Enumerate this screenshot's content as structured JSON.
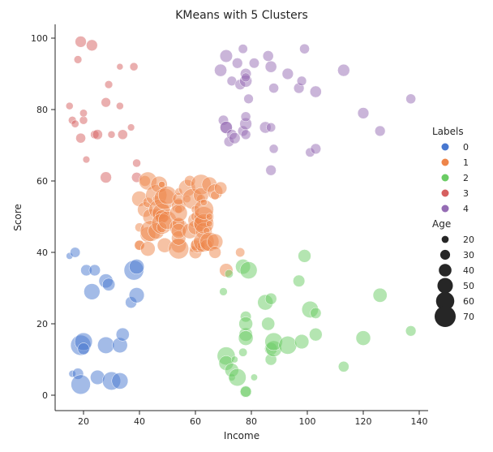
{
  "chart_data": {
    "type": "scatter",
    "title": "KMeans with 5 Clusters",
    "xlabel": "Income",
    "ylabel": "Score",
    "xlim": [
      10,
      145
    ],
    "ylim": [
      -5,
      103
    ],
    "xticks": [
      20,
      40,
      60,
      80,
      100,
      120,
      140
    ],
    "yticks": [
      0,
      20,
      40,
      60,
      80,
      100
    ],
    "grid": false,
    "legend_placement": "right",
    "hue_legend": {
      "title": "Labels",
      "entries": [
        "0",
        "1",
        "2",
        "3",
        "4"
      ]
    },
    "size_legend": {
      "title": "Age",
      "entries": [
        20,
        30,
        40,
        50,
        60,
        70
      ]
    },
    "colors": {
      "0": "#4878d0",
      "1": "#ee854a",
      "2": "#6acc64",
      "3": "#d65f5f",
      "4": "#956cb4"
    },
    "point_fields": [
      "income",
      "score",
      "age",
      "label"
    ],
    "points": [
      [
        15,
        39,
        19,
        0
      ],
      [
        15,
        81,
        21,
        3
      ],
      [
        16,
        6,
        20,
        0
      ],
      [
        16,
        77,
        23,
        3
      ],
      [
        17,
        40,
        31,
        0
      ],
      [
        17,
        76,
        22,
        3
      ],
      [
        18,
        6,
        35,
        0
      ],
      [
        18,
        94,
        23,
        3
      ],
      [
        19,
        3,
        64,
        0
      ],
      [
        19,
        72,
        30,
        3
      ],
      [
        19,
        14,
        67,
        0
      ],
      [
        19,
        99,
        35,
        3
      ],
      [
        20,
        15,
        58,
        0
      ],
      [
        20,
        77,
        24,
        3
      ],
      [
        20,
        13,
        37,
        0
      ],
      [
        20,
        79,
        22,
        3
      ],
      [
        21,
        35,
        35,
        0
      ],
      [
        21,
        66,
        20,
        3
      ],
      [
        23,
        29,
        52,
        0
      ],
      [
        23,
        98,
        35,
        3
      ],
      [
        24,
        35,
        35,
        0
      ],
      [
        24,
        73,
        25,
        3
      ],
      [
        25,
        5,
        46,
        0
      ],
      [
        25,
        73,
        31,
        3
      ],
      [
        28,
        14,
        54,
        0
      ],
      [
        28,
        82,
        29,
        3
      ],
      [
        28,
        32,
        45,
        0
      ],
      [
        28,
        61,
        35,
        3
      ],
      [
        29,
        31,
        40,
        0
      ],
      [
        29,
        87,
        23,
        3
      ],
      [
        30,
        4,
        60,
        0
      ],
      [
        30,
        73,
        21,
        3
      ],
      [
        33,
        4,
        53,
        0
      ],
      [
        33,
        92,
        18,
        3
      ],
      [
        33,
        14,
        49,
        0
      ],
      [
        33,
        81,
        21,
        3
      ],
      [
        34,
        17,
        42,
        0
      ],
      [
        34,
        73,
        30,
        3
      ],
      [
        37,
        26,
        36,
        0
      ],
      [
        37,
        75,
        20,
        3
      ],
      [
        38,
        35,
        65,
        0
      ],
      [
        38,
        92,
        24,
        3
      ],
      [
        39,
        36,
        48,
        0
      ],
      [
        39,
        61,
        31,
        3
      ],
      [
        39,
        28,
        49,
        0
      ],
      [
        39,
        65,
        24,
        3
      ],
      [
        40,
        55,
        50,
        1
      ],
      [
        40,
        47,
        27,
        1
      ],
      [
        40,
        42,
        29,
        1
      ],
      [
        40,
        42,
        31,
        1
      ],
      [
        42,
        52,
        49,
        1
      ],
      [
        42,
        60,
        33,
        1
      ],
      [
        43,
        54,
        31,
        1
      ],
      [
        43,
        60,
        59,
        1
      ],
      [
        43,
        45,
        50,
        1
      ],
      [
        43,
        41,
        47,
        1
      ],
      [
        44,
        50,
        51,
        1
      ],
      [
        44,
        46,
        69,
        1
      ],
      [
        46,
        51,
        27,
        1
      ],
      [
        46,
        46,
        53,
        1
      ],
      [
        46,
        56,
        70,
        1
      ],
      [
        46,
        55,
        19,
        1
      ],
      [
        47,
        52,
        67,
        1
      ],
      [
        47,
        59,
        54,
        1
      ],
      [
        48,
        51,
        63,
        1
      ],
      [
        48,
        59,
        18,
        1
      ],
      [
        48,
        50,
        43,
        1
      ],
      [
        48,
        48,
        68,
        1
      ],
      [
        48,
        59,
        19,
        1
      ],
      [
        48,
        47,
        32,
        1
      ],
      [
        49,
        55,
        70,
        1
      ],
      [
        49,
        42,
        47,
        1
      ],
      [
        50,
        49,
        60,
        1
      ],
      [
        50,
        56,
        60,
        1
      ],
      [
        54,
        47,
        59,
        1
      ],
      [
        54,
        54,
        26,
        1
      ],
      [
        54,
        53,
        45,
        1
      ],
      [
        54,
        48,
        40,
        1
      ],
      [
        54,
        52,
        23,
        1
      ],
      [
        54,
        42,
        49,
        1
      ],
      [
        54,
        51,
        57,
        1
      ],
      [
        54,
        55,
        38,
        1
      ],
      [
        54,
        41,
        67,
        1
      ],
      [
        54,
        44,
        46,
        1
      ],
      [
        54,
        57,
        21,
        1
      ],
      [
        54,
        46,
        48,
        1
      ],
      [
        57,
        58,
        55,
        1
      ],
      [
        57,
        55,
        22,
        1
      ],
      [
        58,
        60,
        34,
        1
      ],
      [
        58,
        46,
        50,
        1
      ],
      [
        59,
        55,
        68,
        1
      ],
      [
        59,
        41,
        18,
        1
      ],
      [
        60,
        49,
        48,
        1
      ],
      [
        60,
        40,
        40,
        1
      ],
      [
        60,
        42,
        32,
        1
      ],
      [
        60,
        52,
        24,
        1
      ],
      [
        60,
        47,
        47,
        1
      ],
      [
        60,
        50,
        27,
        1
      ],
      [
        61,
        42,
        48,
        1
      ],
      [
        61,
        49,
        20,
        1
      ],
      [
        62,
        41,
        23,
        1
      ],
      [
        62,
        48,
        49,
        1
      ],
      [
        62,
        59,
        67,
        1
      ],
      [
        62,
        55,
        26,
        1
      ],
      [
        62,
        56,
        49,
        1
      ],
      [
        62,
        42,
        21,
        1
      ],
      [
        63,
        50,
        66,
        1
      ],
      [
        63,
        46,
        54,
        1
      ],
      [
        63,
        43,
        68,
        1
      ],
      [
        63,
        48,
        66,
        1
      ],
      [
        63,
        52,
        65,
        1
      ],
      [
        63,
        54,
        19,
        1
      ],
      [
        64,
        42,
        38,
        1
      ],
      [
        64,
        46,
        19,
        1
      ],
      [
        65,
        48,
        18,
        1
      ],
      [
        65,
        50,
        19,
        1
      ],
      [
        65,
        43,
        63,
        1
      ],
      [
        65,
        59,
        49,
        1
      ],
      [
        67,
        43,
        51,
        1
      ],
      [
        67,
        57,
        50,
        1
      ],
      [
        67,
        56,
        27,
        1
      ],
      [
        67,
        40,
        38,
        1
      ],
      [
        69,
        58,
        40,
        1
      ],
      [
        69,
        91,
        39,
        4
      ],
      [
        70,
        29,
        23,
        2
      ],
      [
        70,
        77,
        31,
        4
      ],
      [
        71,
        35,
        43,
        1
      ],
      [
        71,
        95,
        40,
        4
      ],
      [
        71,
        11,
        59,
        2
      ],
      [
        71,
        75,
        38,
        4
      ],
      [
        71,
        9,
        47,
        2
      ],
      [
        71,
        75,
        39,
        4
      ],
      [
        72,
        34,
        25,
        2
      ],
      [
        72,
        71,
        31,
        4
      ],
      [
        73,
        5,
        20,
        2
      ],
      [
        73,
        88,
        29,
        4
      ],
      [
        73,
        7,
        44,
        2
      ],
      [
        73,
        73,
        32,
        4
      ],
      [
        74,
        10,
        19,
        2
      ],
      [
        74,
        72,
        35,
        4
      ],
      [
        75,
        5,
        57,
        2
      ],
      [
        75,
        93,
        32,
        4
      ],
      [
        76,
        40,
        28,
        1
      ],
      [
        76,
        87,
        32,
        4
      ],
      [
        77,
        12,
        25,
        2
      ],
      [
        77,
        97,
        28,
        4
      ],
      [
        77,
        36,
        48,
        2
      ],
      [
        77,
        74,
        32,
        4
      ],
      [
        78,
        22,
        34,
        2
      ],
      [
        78,
        90,
        34,
        4
      ],
      [
        78,
        17,
        43,
        2
      ],
      [
        78,
        88,
        39,
        4
      ],
      [
        78,
        20,
        44,
        2
      ],
      [
        78,
        76,
        38,
        4
      ],
      [
        78,
        16,
        47,
        2
      ],
      [
        78,
        89,
        27,
        4
      ],
      [
        78,
        1,
        37,
        2
      ],
      [
        78,
        78,
        30,
        4
      ],
      [
        78,
        1,
        34,
        2
      ],
      [
        78,
        73,
        30,
        4
      ],
      [
        79,
        35,
        56,
        2
      ],
      [
        79,
        83,
        29,
        4
      ],
      [
        81,
        5,
        19,
        2
      ],
      [
        81,
        93,
        31,
        4
      ],
      [
        85,
        26,
        50,
        2
      ],
      [
        85,
        75,
        36,
        4
      ],
      [
        86,
        20,
        42,
        2
      ],
      [
        86,
        95,
        33,
        4
      ],
      [
        87,
        27,
        36,
        2
      ],
      [
        87,
        63,
        32,
        4
      ],
      [
        87,
        13,
        40,
        2
      ],
      [
        87,
        75,
        28,
        4
      ],
      [
        87,
        10,
        36,
        2
      ],
      [
        87,
        92,
        36,
        4
      ],
      [
        88,
        13,
        52,
        2
      ],
      [
        88,
        86,
        30,
        4
      ],
      [
        88,
        15,
        58,
        2
      ],
      [
        88,
        69,
        27,
        4
      ],
      [
        93,
        14,
        59,
        2
      ],
      [
        93,
        90,
        35,
        4
      ],
      [
        97,
        32,
        37,
        2
      ],
      [
        97,
        86,
        32,
        4
      ],
      [
        98,
        15,
        46,
        2
      ],
      [
        98,
        88,
        29,
        4
      ],
      [
        99,
        39,
        41,
        2
      ],
      [
        99,
        97,
        30,
        4
      ],
      [
        101,
        24,
        54,
        2
      ],
      [
        101,
        68,
        28,
        4
      ],
      [
        103,
        17,
        41,
        2
      ],
      [
        103,
        85,
        36,
        4
      ],
      [
        103,
        23,
        34,
        2
      ],
      [
        103,
        69,
        32,
        4
      ],
      [
        113,
        8,
        33,
        2
      ],
      [
        113,
        91,
        38,
        4
      ],
      [
        120,
        16,
        47,
        2
      ],
      [
        120,
        79,
        35,
        4
      ],
      [
        126,
        28,
        45,
        2
      ],
      [
        126,
        74,
        32,
        4
      ],
      [
        137,
        18,
        32,
        2
      ],
      [
        137,
        83,
        30,
        4
      ]
    ]
  }
}
